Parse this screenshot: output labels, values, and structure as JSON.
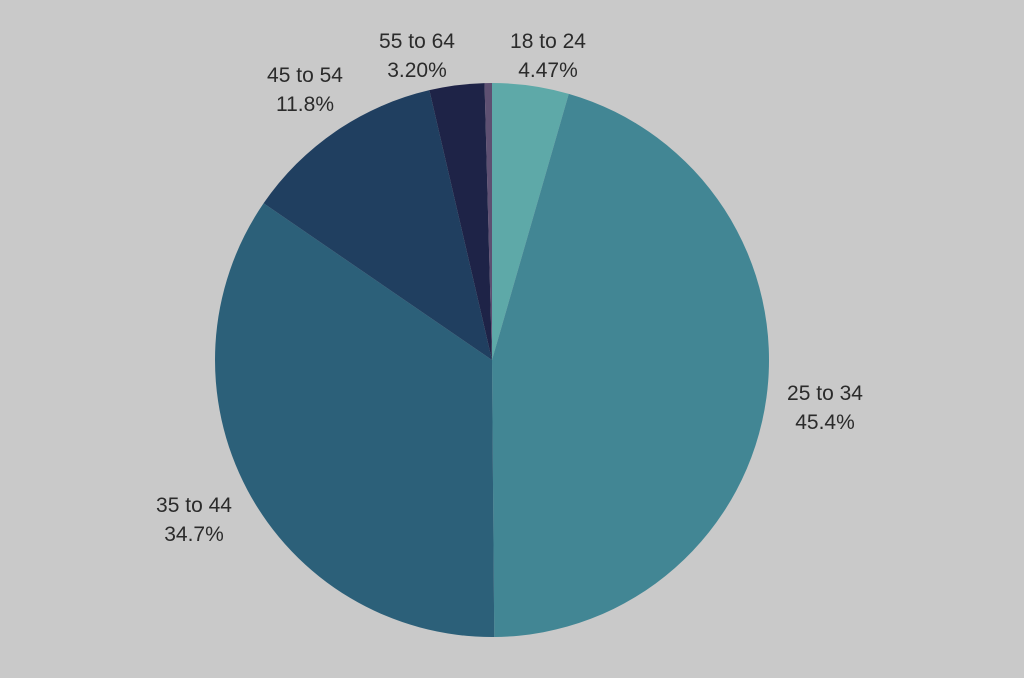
{
  "chart_data": {
    "type": "pie",
    "title": "",
    "start_angle_deg": 0,
    "direction": "clockwise",
    "background": "#c9c9c9",
    "slices": [
      {
        "label": "18 to 24",
        "value_text": "4.47%",
        "value": 4.47,
        "color": "#5ea9a8"
      },
      {
        "label": "25 to 34",
        "value_text": "45.4%",
        "value": 45.4,
        "color": "#428694"
      },
      {
        "label": "35 to 44",
        "value_text": "34.7%",
        "value": 34.7,
        "color": "#2c6079"
      },
      {
        "label": "45 to 54",
        "value_text": "11.8%",
        "value": 11.8,
        "color": "#203f60"
      },
      {
        "label": "55 to 64",
        "value_text": "3.20%",
        "value": 3.2,
        "color": "#1e2347"
      },
      {
        "label": "",
        "value_text": "",
        "value": 0.43,
        "color": "#5e5072"
      }
    ]
  }
}
